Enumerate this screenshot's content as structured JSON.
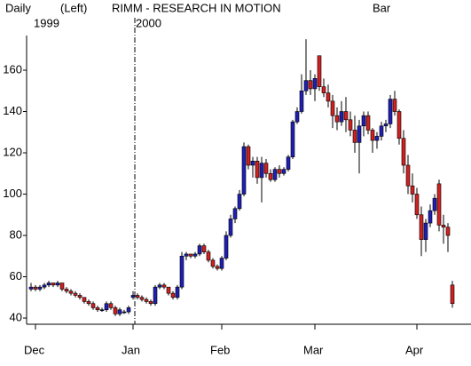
{
  "chart_data": {
    "type": "candlestick",
    "period": "Daily",
    "axis_side": "(Left)",
    "title": "RIMM - RESEARCH IN MOTION",
    "style": "Bar",
    "year_labels": [
      "1999",
      "2000"
    ],
    "up_color": "#1f1fb4",
    "down_color": "#d02020",
    "ylim": [
      37,
      177
    ],
    "yticks": [
      40,
      60,
      80,
      100,
      120,
      140,
      160
    ],
    "categories": [
      null,
      "Dec",
      null,
      null,
      null,
      null,
      null,
      null,
      null,
      null,
      null,
      null,
      null,
      null,
      null,
      null,
      null,
      null,
      null,
      null,
      null,
      null,
      null,
      "Jan",
      null,
      null,
      null,
      null,
      null,
      null,
      null,
      null,
      null,
      null,
      null,
      null,
      null,
      null,
      null,
      null,
      null,
      null,
      null,
      "Feb",
      null,
      null,
      null,
      null,
      null,
      null,
      null,
      null,
      null,
      null,
      null,
      null,
      null,
      null,
      null,
      null,
      null,
      null,
      null,
      null,
      "Mar",
      null,
      null,
      null,
      null,
      null,
      null,
      null,
      null,
      null,
      null,
      null,
      null,
      null,
      null,
      null,
      null,
      null,
      null,
      null,
      null,
      null,
      null,
      "Apr",
      null,
      null,
      null,
      null,
      null,
      null,
      null,
      null
    ],
    "ohlc": [
      [
        54,
        57,
        53,
        55
      ],
      [
        55,
        56,
        53,
        54
      ],
      [
        54,
        56,
        53,
        55
      ],
      [
        55,
        57,
        54,
        56
      ],
      [
        56,
        58,
        55,
        57
      ],
      [
        57,
        57,
        55,
        56
      ],
      [
        56,
        58,
        55,
        57
      ],
      [
        57,
        57,
        53,
        54
      ],
      [
        54,
        55,
        52,
        53
      ],
      [
        53,
        54,
        51,
        52
      ],
      [
        52,
        53,
        50,
        51
      ],
      [
        51,
        52,
        49,
        50
      ],
      [
        50,
        50,
        47,
        48
      ],
      [
        48,
        49,
        46,
        47
      ],
      [
        47,
        48,
        44,
        45
      ],
      [
        45,
        46,
        43,
        44
      ],
      [
        44,
        45,
        43,
        44
      ],
      [
        44,
        48,
        43,
        47
      ],
      [
        47,
        48,
        44,
        45
      ],
      [
        45,
        46,
        41,
        42
      ],
      [
        42,
        45,
        41,
        44
      ],
      [
        43,
        44,
        42,
        43
      ],
      [
        43,
        46,
        42,
        45
      ],
      [
        50,
        53,
        49,
        51
      ],
      [
        51,
        52,
        49,
        50
      ],
      [
        50,
        51,
        48,
        49
      ],
      [
        49,
        50,
        47,
        48
      ],
      [
        48,
        49,
        46,
        47
      ],
      [
        47,
        56,
        46,
        55
      ],
      [
        55,
        57,
        54,
        56
      ],
      [
        56,
        57,
        54,
        55
      ],
      [
        55,
        55,
        51,
        52
      ],
      [
        52,
        53,
        49,
        50
      ],
      [
        50,
        56,
        49,
        55
      ],
      [
        55,
        72,
        54,
        70
      ],
      [
        70,
        72,
        68,
        71
      ],
      [
        71,
        71,
        69,
        70
      ],
      [
        70,
        72,
        69,
        71
      ],
      [
        71,
        76,
        70,
        75
      ],
      [
        75,
        76,
        71,
        72
      ],
      [
        72,
        73,
        67,
        68
      ],
      [
        68,
        69,
        64,
        65
      ],
      [
        65,
        66,
        63,
        64
      ],
      [
        64,
        70,
        63,
        69
      ],
      [
        69,
        82,
        68,
        80
      ],
      [
        80,
        90,
        79,
        88
      ],
      [
        88,
        94,
        86,
        93
      ],
      [
        93,
        102,
        92,
        100
      ],
      [
        100,
        125,
        99,
        123
      ],
      [
        123,
        124,
        112,
        114
      ],
      [
        114,
        118,
        108,
        116
      ],
      [
        116,
        118,
        105,
        108
      ],
      [
        108,
        118,
        96,
        115
      ],
      [
        115,
        117,
        108,
        110
      ],
      [
        110,
        112,
        106,
        107
      ],
      [
        107,
        113,
        106,
        112
      ],
      [
        112,
        114,
        108,
        110
      ],
      [
        110,
        113,
        109,
        112
      ],
      [
        112,
        119,
        111,
        118
      ],
      [
        118,
        136,
        117,
        135
      ],
      [
        135,
        142,
        134,
        140
      ],
      [
        140,
        158,
        139,
        150
      ],
      [
        150,
        175,
        148,
        155
      ],
      [
        155,
        160,
        148,
        151
      ],
      [
        151,
        158,
        145,
        156
      ],
      [
        167,
        167,
        150,
        152
      ],
      [
        152,
        156,
        147,
        149
      ],
      [
        149,
        153,
        142,
        145
      ],
      [
        145,
        148,
        132,
        138
      ],
      [
        138,
        142,
        131,
        135
      ],
      [
        135,
        145,
        133,
        140
      ],
      [
        140,
        147,
        130,
        136
      ],
      [
        136,
        140,
        128,
        131
      ],
      [
        131,
        138,
        120,
        125
      ],
      [
        125,
        136,
        110,
        133
      ],
      [
        133,
        140,
        128,
        138
      ],
      [
        138,
        140,
        129,
        131
      ],
      [
        131,
        132,
        120,
        126
      ],
      [
        126,
        130,
        122,
        128
      ],
      [
        128,
        135,
        126,
        133
      ],
      [
        133,
        136,
        130,
        134
      ],
      [
        134,
        148,
        132,
        146
      ],
      [
        146,
        150,
        138,
        140
      ],
      [
        140,
        141,
        124,
        127
      ],
      [
        127,
        131,
        110,
        114
      ],
      [
        114,
        119,
        100,
        104
      ],
      [
        104,
        110,
        96,
        100
      ],
      [
        100,
        103,
        88,
        90
      ],
      [
        90,
        94,
        70,
        78
      ],
      [
        78,
        88,
        72,
        86
      ],
      [
        86,
        95,
        84,
        92
      ],
      [
        92,
        100,
        90,
        98
      ],
      [
        105,
        107,
        82,
        85
      ],
      [
        85,
        90,
        76,
        84
      ],
      [
        84,
        86,
        72,
        80
      ],
      [
        56,
        58,
        45,
        47
      ]
    ]
  }
}
